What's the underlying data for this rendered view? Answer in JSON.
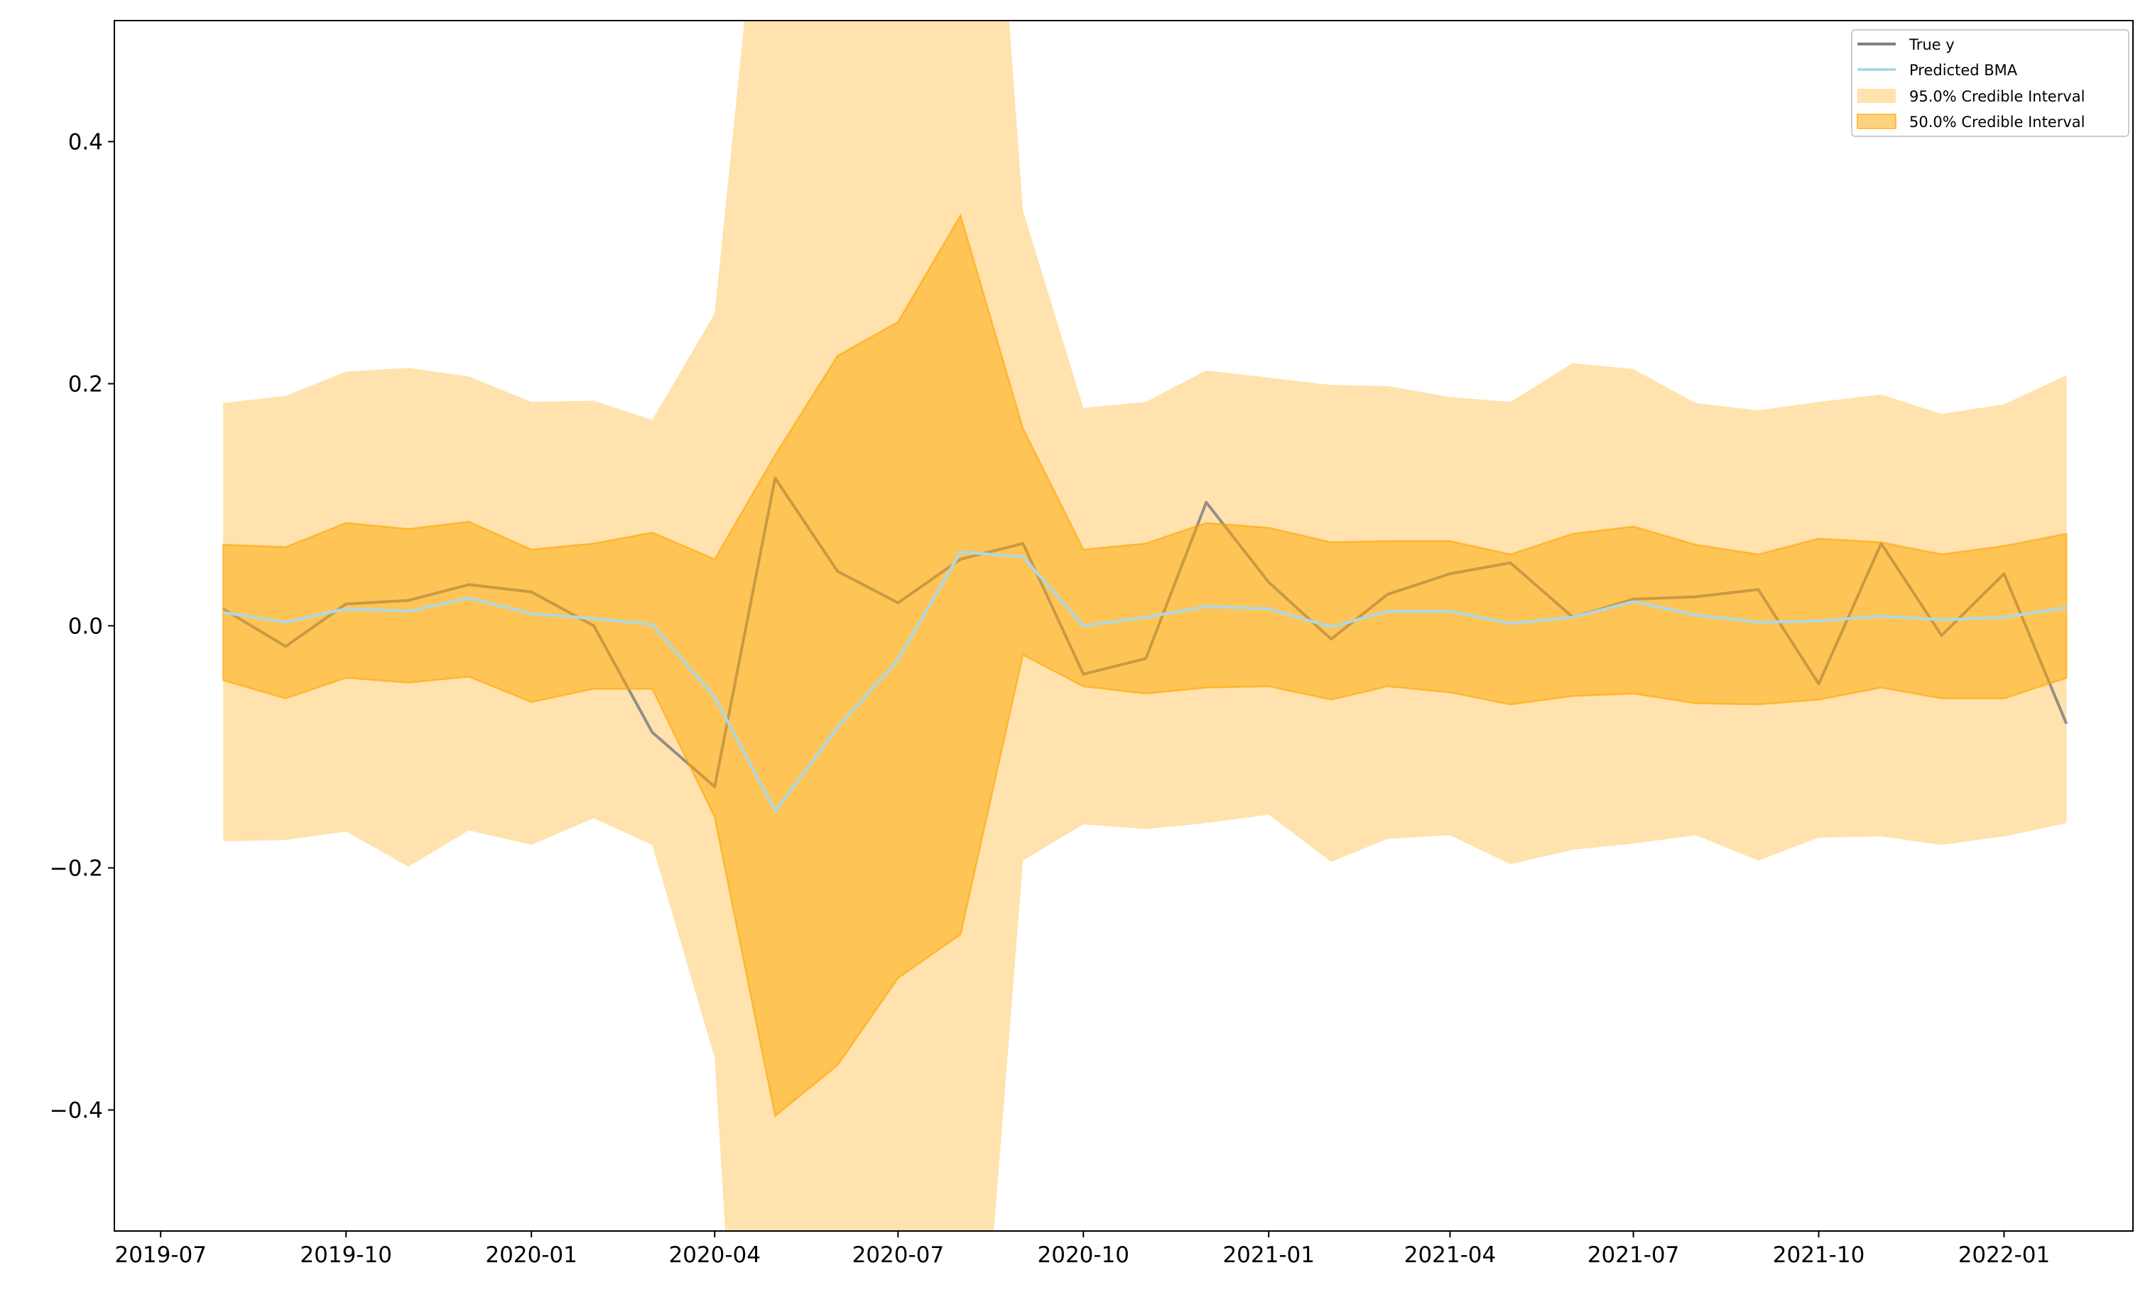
{
  "chart_data": {
    "type": "line",
    "title": "",
    "xlabel": "",
    "ylabel": "",
    "ylim": [
      -0.5,
      0.5
    ],
    "xlim": [
      "2019-06-08",
      "2022-03-06"
    ],
    "grid": false,
    "legend_position": "top-right",
    "x_ticks": [
      "2019-07",
      "2019-10",
      "2020-01",
      "2020-04",
      "2020-07",
      "2020-10",
      "2021-01",
      "2021-04",
      "2021-07",
      "2021-10",
      "2022-01"
    ],
    "y_ticks": [
      -0.4,
      -0.2,
      0.0,
      0.2,
      0.4
    ],
    "y_tick_labels": [
      "−0.4",
      "−0.2",
      "0.0",
      "0.2",
      "0.4"
    ],
    "x": [
      "2019-08",
      "2019-09",
      "2019-10",
      "2019-11",
      "2019-12",
      "2020-01",
      "2020-02",
      "2020-03",
      "2020-04",
      "2020-05",
      "2020-06",
      "2020-07",
      "2020-08",
      "2020-09",
      "2020-10",
      "2020-11",
      "2020-12",
      "2021-01",
      "2021-02",
      "2021-03",
      "2021-04",
      "2021-05",
      "2021-06",
      "2021-07",
      "2021-08",
      "2021-09",
      "2021-10",
      "2021-11",
      "2021-12",
      "2022-01",
      "2022-02"
    ],
    "series": [
      {
        "name": "True y",
        "kind": "line",
        "color": "#808080",
        "values": [
          0.014,
          -0.017,
          0.018,
          0.021,
          0.034,
          0.028,
          0.0,
          -0.088,
          -0.133,
          0.122,
          0.045,
          0.019,
          0.055,
          0.068,
          -0.04,
          -0.027,
          0.102,
          0.036,
          -0.011,
          0.026,
          0.043,
          0.052,
          0.007,
          0.022,
          0.024,
          0.03,
          -0.048,
          0.068,
          -0.008,
          0.043,
          -0.081
        ]
      },
      {
        "name": "Predicted BMA",
        "kind": "line",
        "color": "#add8e6",
        "values": [
          0.011,
          0.003,
          0.014,
          0.012,
          0.023,
          0.01,
          0.006,
          0.001,
          -0.059,
          -0.153,
          -0.084,
          -0.028,
          0.061,
          0.057,
          0.0,
          0.007,
          0.016,
          0.014,
          -0.001,
          0.012,
          0.012,
          0.002,
          0.007,
          0.02,
          0.009,
          0.003,
          0.004,
          0.008,
          0.005,
          0.007,
          0.015
        ]
      },
      {
        "name": "95.0% Credible Interval",
        "kind": "band",
        "color": "#ffa500",
        "upper": [
          0.184,
          0.19,
          0.21,
          0.213,
          0.206,
          0.185,
          0.186,
          0.17,
          0.258,
          0.75,
          0.9,
          1.0,
          1.05,
          0.343,
          0.18,
          0.185,
          0.211,
          0.205,
          0.199,
          0.198,
          0.189,
          0.185,
          0.217,
          0.212,
          0.184,
          0.178,
          0.185,
          0.191,
          0.175,
          0.183,
          0.207
        ],
        "lower": [
          -0.178,
          -0.177,
          -0.17,
          -0.199,
          -0.169,
          -0.181,
          -0.159,
          -0.181,
          -0.357,
          -1.18,
          -1.1,
          -1.0,
          -0.85,
          -0.194,
          -0.164,
          -0.168,
          -0.163,
          -0.156,
          -0.195,
          -0.176,
          -0.173,
          -0.197,
          -0.185,
          -0.18,
          -0.173,
          -0.194,
          -0.175,
          -0.174,
          -0.181,
          -0.174,
          -0.163
        ]
      },
      {
        "name": "50.0% Credible Interval",
        "kind": "band",
        "color": "#ffa500",
        "upper": [
          0.067,
          0.065,
          0.085,
          0.08,
          0.086,
          0.063,
          0.068,
          0.077,
          0.055,
          0.141,
          0.223,
          0.251,
          0.339,
          0.163,
          0.063,
          0.068,
          0.085,
          0.081,
          0.069,
          0.07,
          0.07,
          0.059,
          0.076,
          0.082,
          0.067,
          0.059,
          0.072,
          0.069,
          0.059,
          0.066,
          0.076
        ],
        "lower": [
          -0.045,
          -0.06,
          -0.043,
          -0.047,
          -0.042,
          -0.063,
          -0.052,
          -0.052,
          -0.158,
          -0.405,
          -0.363,
          -0.291,
          -0.255,
          -0.024,
          -0.05,
          -0.056,
          -0.051,
          -0.05,
          -0.061,
          -0.05,
          -0.055,
          -0.065,
          -0.058,
          -0.056,
          -0.064,
          -0.065,
          -0.061,
          -0.051,
          -0.06,
          -0.06,
          -0.043
        ]
      }
    ]
  }
}
